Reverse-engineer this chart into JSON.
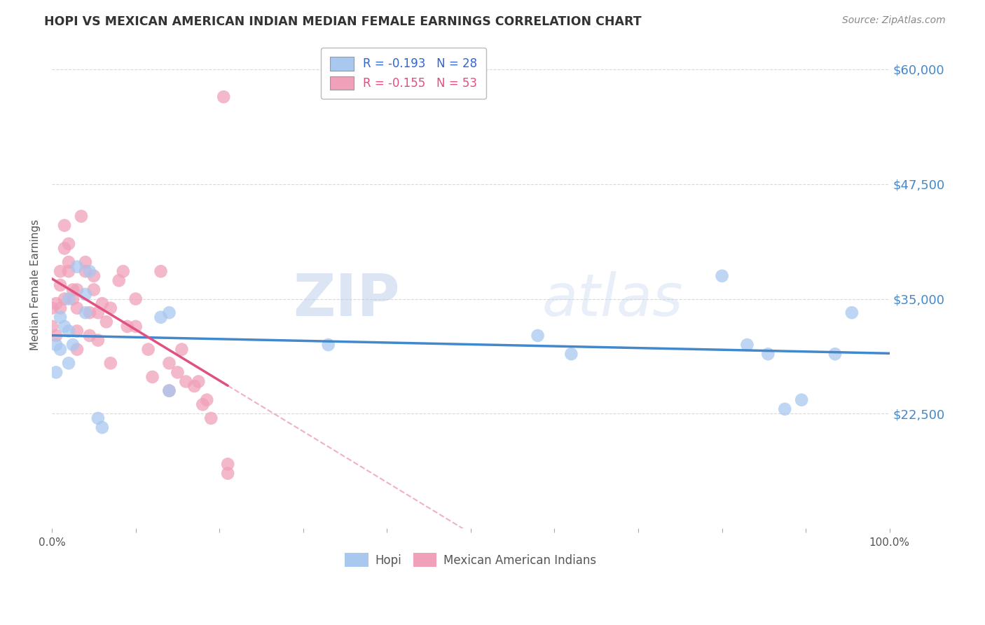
{
  "title": "HOPI VS MEXICAN AMERICAN INDIAN MEDIAN FEMALE EARNINGS CORRELATION CHART",
  "source": "Source: ZipAtlas.com",
  "ylabel": "Median Female Earnings",
  "ytick_labels": [
    "$60,000",
    "$47,500",
    "$35,000",
    "$22,500"
  ],
  "ytick_values": [
    60000,
    47500,
    35000,
    22500
  ],
  "ymin": 10000,
  "ymax": 63000,
  "xmin": 0.0,
  "xmax": 1.0,
  "legend_hopi_R": "-0.193",
  "legend_hopi_N": "28",
  "legend_mex_R": "-0.155",
  "legend_mex_N": "53",
  "hopi_color": "#a8c8f0",
  "mex_color": "#f0a0b8",
  "hopi_line_color": "#4488cc",
  "mex_line_color": "#e05080",
  "watermark_zip": "ZIP",
  "watermark_atlas": "atlas",
  "hopi_x": [
    0.005,
    0.005,
    0.01,
    0.01,
    0.015,
    0.02,
    0.02,
    0.02,
    0.025,
    0.03,
    0.04,
    0.04,
    0.045,
    0.055,
    0.06,
    0.13,
    0.14,
    0.14,
    0.33,
    0.58,
    0.62,
    0.8,
    0.83,
    0.855,
    0.875,
    0.895,
    0.935,
    0.955
  ],
  "hopi_y": [
    30000,
    27000,
    33000,
    29500,
    32000,
    35000,
    31500,
    28000,
    30000,
    38500,
    35500,
    33500,
    38000,
    22000,
    21000,
    33000,
    33500,
    25000,
    30000,
    31000,
    29000,
    37500,
    30000,
    29000,
    23000,
    24000,
    29000,
    33500
  ],
  "mex_x": [
    0.0,
    0.0,
    0.005,
    0.005,
    0.01,
    0.01,
    0.01,
    0.015,
    0.015,
    0.015,
    0.02,
    0.02,
    0.02,
    0.025,
    0.025,
    0.03,
    0.03,
    0.03,
    0.03,
    0.035,
    0.04,
    0.04,
    0.045,
    0.045,
    0.05,
    0.05,
    0.055,
    0.055,
    0.06,
    0.065,
    0.07,
    0.07,
    0.08,
    0.085,
    0.09,
    0.1,
    0.1,
    0.115,
    0.12,
    0.13,
    0.14,
    0.14,
    0.15,
    0.155,
    0.16,
    0.17,
    0.175,
    0.18,
    0.185,
    0.19,
    0.205,
    0.21,
    0.21
  ],
  "mex_y": [
    34000,
    32000,
    34500,
    31000,
    38000,
    36500,
    34000,
    43000,
    40500,
    35000,
    41000,
    39000,
    38000,
    36000,
    35000,
    36000,
    34000,
    31500,
    29500,
    44000,
    39000,
    38000,
    33500,
    31000,
    37500,
    36000,
    33500,
    30500,
    34500,
    32500,
    34000,
    28000,
    37000,
    38000,
    32000,
    32000,
    35000,
    29500,
    26500,
    38000,
    28000,
    25000,
    27000,
    29500,
    26000,
    25500,
    26000,
    23500,
    24000,
    22000,
    57000,
    17000,
    16000
  ],
  "background_color": "#ffffff",
  "grid_color": "#d0d0d0"
}
